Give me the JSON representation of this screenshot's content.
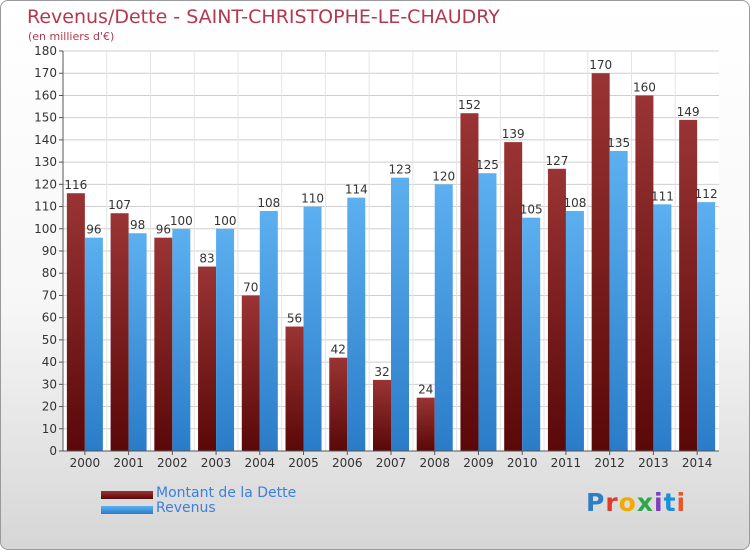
{
  "title": "Revenus/Dette - SAINT-CHRISTOPHE-LE-CHAUDRY",
  "subtitle": "(en milliers d'€)",
  "logo": {
    "text": "Proxiti",
    "colors": [
      "#2e7ec4",
      "#e03b2a",
      "#f2a900",
      "#2aa84a",
      "#7a3fbf",
      "#1e8fd6",
      "#e8552b"
    ]
  },
  "chart_data": {
    "type": "bar",
    "categories": [
      "2000",
      "2001",
      "2002",
      "2003",
      "2004",
      "2005",
      "2006",
      "2007",
      "2008",
      "2009",
      "2010",
      "2011",
      "2012",
      "2013",
      "2014"
    ],
    "series": [
      {
        "name": "Montant de la Dette",
        "color": "#7b1c1c",
        "values": [
          116,
          107,
          96,
          83,
          70,
          56,
          42,
          32,
          24,
          152,
          139,
          127,
          170,
          160,
          149
        ]
      },
      {
        "name": "Revenus",
        "color": "#3c97e0",
        "values": [
          96,
          98,
          100,
          100,
          108,
          110,
          114,
          123,
          120,
          125,
          105,
          108,
          135,
          111,
          112
        ]
      }
    ],
    "ylim": [
      0,
      180
    ],
    "yticks": [
      0,
      10,
      20,
      30,
      40,
      50,
      60,
      70,
      80,
      90,
      100,
      110,
      120,
      130,
      140,
      150,
      160,
      170,
      180
    ],
    "grid": true,
    "legend": "bottom-left"
  }
}
